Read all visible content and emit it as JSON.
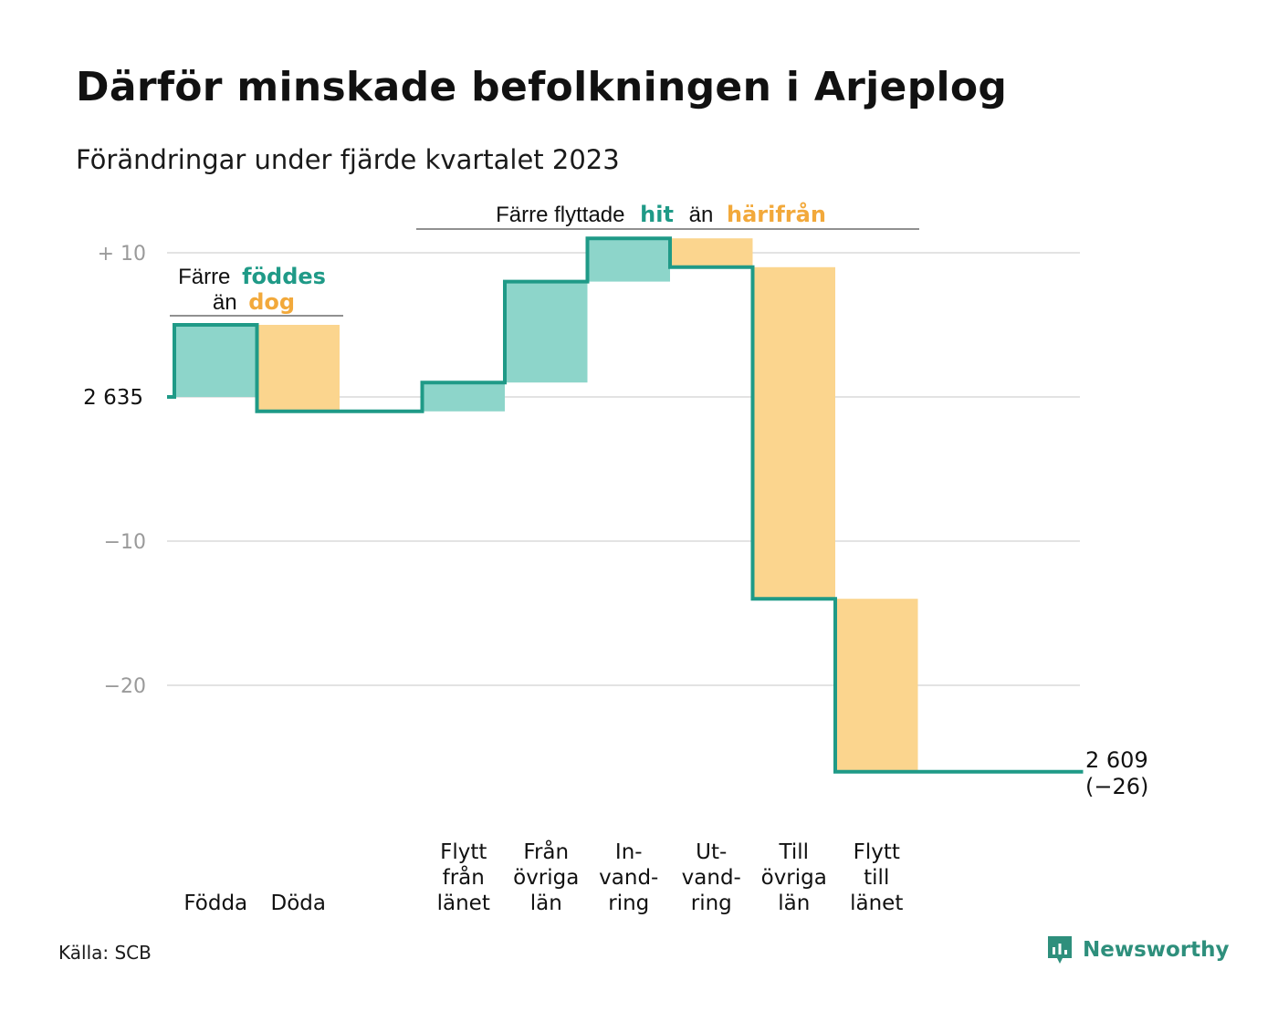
{
  "title": "Därför minskade befolkningen i Arjeplog",
  "subtitle": "Förändringar under fjärde kvartalet 2023",
  "source": "Källa: SCB",
  "brand": "Newsworthy",
  "colors": {
    "line": "#1f9a87",
    "positive": "#8dd5ca",
    "negative": "#fbd58e",
    "teal_text": "#1f9a87",
    "orange_text": "#f2a93b",
    "grid": "#e3e3e3"
  },
  "annotations": {
    "births": {
      "pre": "Färre",
      "teal": "föddes",
      "line2_pre": "än",
      "orange": "dog"
    },
    "moves": {
      "pre": "Färre flyttade",
      "teal": "hit",
      "mid": "än",
      "orange": "härifrån"
    }
  },
  "chart_data": {
    "type": "waterfall",
    "start_value": 2635,
    "start_label": "2 635",
    "end_value": 2609,
    "end_label": "2 609",
    "end_change_label": "(−26)",
    "y_ticks": [
      {
        "value": 10,
        "label": "+  10"
      },
      {
        "value": 0,
        "label": ""
      },
      {
        "value": -10,
        "label": "−10"
      },
      {
        "value": -20,
        "label": "−20"
      }
    ],
    "ylim": [
      -26,
      10
    ],
    "steps": [
      {
        "label_lines": [
          "Födda"
        ],
        "value": 5,
        "kind": "in"
      },
      {
        "label_lines": [
          "Döda"
        ],
        "value": -6,
        "kind": "out"
      },
      {
        "label_lines": [],
        "value": 0,
        "kind": "none"
      },
      {
        "label_lines": [
          "Flytt",
          "från",
          "länet"
        ],
        "value": 2,
        "kind": "in"
      },
      {
        "label_lines": [
          "Från",
          "övriga",
          "län"
        ],
        "value": 7,
        "kind": "in"
      },
      {
        "label_lines": [
          "In-",
          "vand-",
          "ring"
        ],
        "value": 3,
        "kind": "in"
      },
      {
        "label_lines": [
          "Ut-",
          "vand-",
          "ring"
        ],
        "value": -2,
        "kind": "out"
      },
      {
        "label_lines": [
          "Till",
          "övriga",
          "län"
        ],
        "value": -23,
        "kind": "out"
      },
      {
        "label_lines": [
          "Flytt",
          "till",
          "länet"
        ],
        "value": -12,
        "kind": "out"
      },
      {
        "label_lines": [],
        "value": 0,
        "kind": "none"
      },
      {
        "label_lines": [],
        "value": 0,
        "kind": "none"
      }
    ]
  }
}
